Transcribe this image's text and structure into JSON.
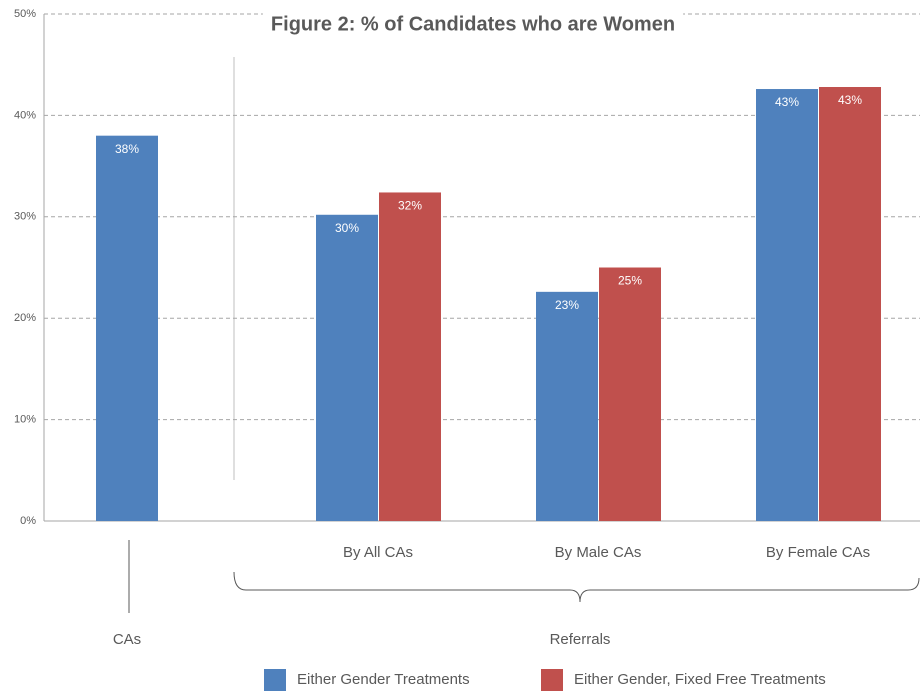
{
  "chart_data": {
    "type": "bar",
    "title": "Figure 2: % of Candidates who are Women",
    "categories": [
      null,
      "By All CAs",
      "By Male CAs",
      "By Female CAs"
    ],
    "group_labels": [
      "CAs",
      "Referrals"
    ],
    "series": [
      {
        "name": "Either Gender Treatments",
        "color": "#4f81bd",
        "values": [
          38,
          30.2,
          22.6,
          42.6
        ],
        "value_labels": [
          "38%",
          "30%",
          "23%",
          "43%"
        ]
      },
      {
        "name": "Either Gender, Fixed Free Treatments",
        "color": "#c0504d",
        "values": [
          null,
          32.4,
          25,
          42.8
        ],
        "value_labels": [
          null,
          "32%",
          "25%",
          "43%"
        ]
      }
    ],
    "ylim": [
      0,
      50
    ],
    "yticks": [
      {
        "value": 0,
        "label": "0%"
      },
      {
        "value": 10,
        "label": "10%"
      },
      {
        "value": 20,
        "label": "20%"
      },
      {
        "value": 30,
        "label": "30%"
      },
      {
        "value": 40,
        "label": "40%"
      },
      {
        "value": 50,
        "label": "50%"
      }
    ],
    "grid": true
  }
}
